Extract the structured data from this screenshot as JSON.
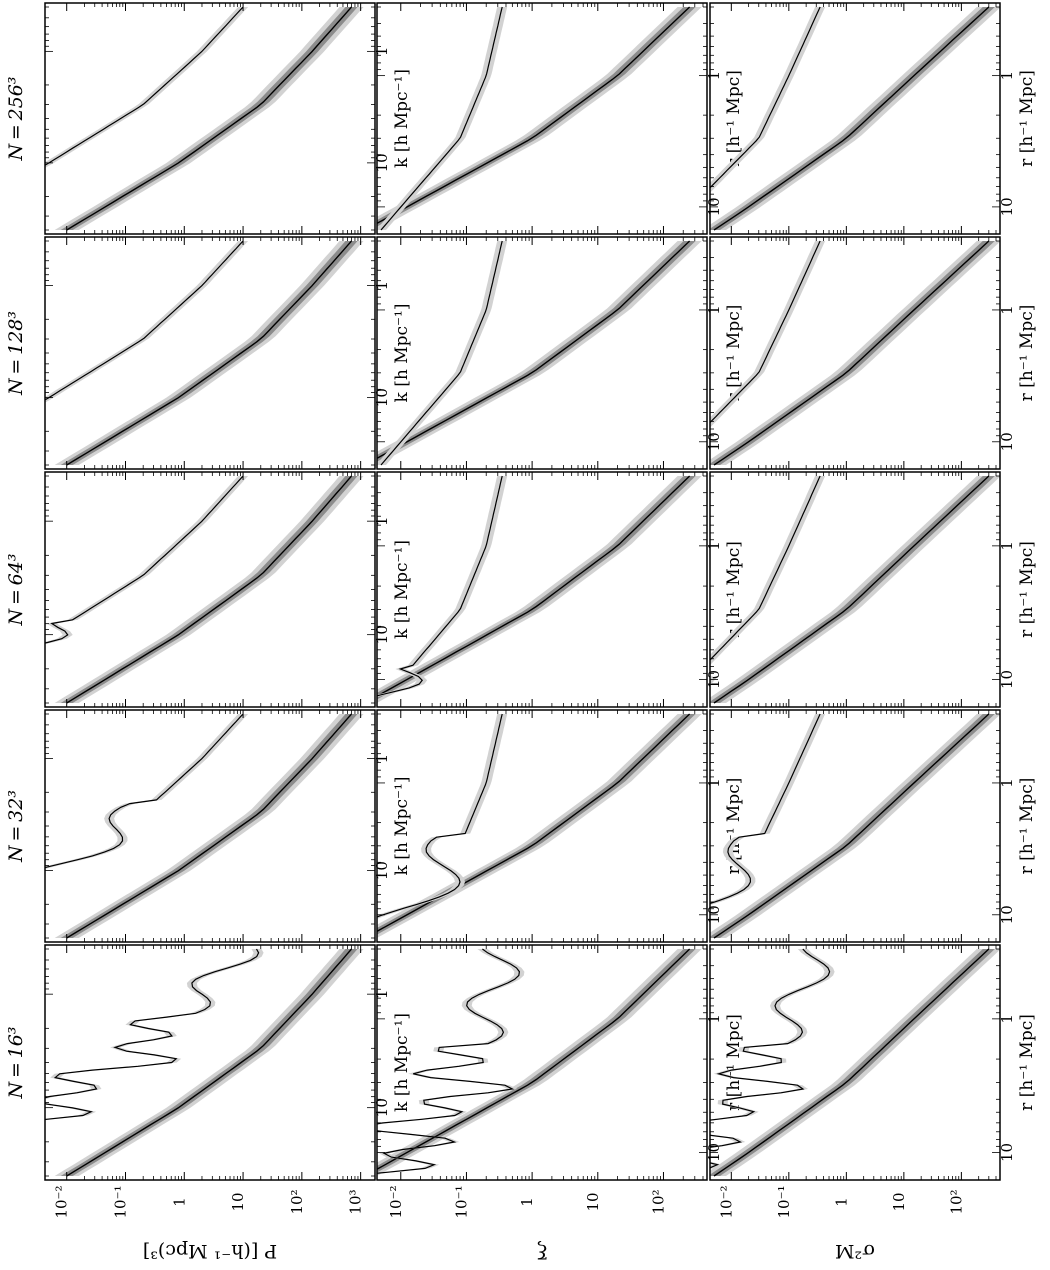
{
  "figure": {
    "columns": [
      {
        "label": "N = 16³",
        "lowres_style": "jagged16"
      },
      {
        "label": "N = 32³",
        "lowres_style": "jagged32"
      },
      {
        "label": "N = 64³",
        "lowres_style": "jagged64"
      },
      {
        "label": "N = 128³",
        "lowres_style": "smooth"
      },
      {
        "label": "N = 256³",
        "lowres_style": "smooth"
      }
    ],
    "rows": [
      {
        "quantity": "power-spectrum",
        "ylabel": "P  [(h⁻¹ Mpc)³]",
        "xlabel": "k  [h  Mpc⁻¹]",
        "xticks": [
          "1",
          "10"
        ],
        "yticks": [
          "10³",
          "10²",
          "10",
          "1",
          "10⁻¹",
          "10⁻²"
        ]
      },
      {
        "quantity": "correlation-function",
        "ylabel": "ξ",
        "xlabel": "r  [h⁻¹ Mpc]",
        "xticks": [
          "1",
          "10"
        ],
        "yticks": [
          "10²",
          "10",
          "1",
          "10⁻¹",
          "10⁻²"
        ]
      },
      {
        "quantity": "mass-variance",
        "ylabel": "σ²M",
        "xlabel": "r  [h⁻¹ Mpc]",
        "xticks": [
          "1",
          "10"
        ],
        "yticks": [
          "10²",
          "10",
          "1",
          "10⁻¹",
          "10⁻²"
        ]
      }
    ]
  },
  "chart_data": {
    "type": "line",
    "layout": "3x5 panel grid, figure rotated 90 degrees",
    "bands": {
      "inner": "#8c8c8c",
      "outer": "#d2d2d2"
    },
    "rows": [
      {
        "quantity": "power-spectrum",
        "xscale": "log",
        "yscale": "log",
        "xlim": [
          0.4,
          40
        ],
        "ylim": [
          0.005,
          1500
        ],
        "nonlinear_curve": {
          "x": [
            0.4,
            1,
            3,
            10,
            40
          ],
          "y": [
            700,
            150,
            20,
            0.8,
            0.01
          ]
        },
        "linear_curve": {
          "x": [
            0.4,
            1,
            3,
            10,
            40
          ],
          "y": [
            10,
            2,
            0.2,
            0.005,
            5e-05
          ]
        }
      },
      {
        "quantity": "correlation-function",
        "xscale": "log",
        "yscale": "log",
        "xlim": [
          0.3,
          15
        ],
        "ylim": [
          0.005,
          400
        ],
        "nonlinear_curve": {
          "x": [
            0.3,
            1,
            3,
            6
          ],
          "y": [
            250,
            20,
            1,
            0.08
          ]
        },
        "linear_curve": {
          "x": [
            0.3,
            1,
            3,
            15
          ],
          "y": [
            0.35,
            0.2,
            0.08,
            0.005
          ]
        }
      },
      {
        "quantity": "mass-variance",
        "xscale": "log",
        "yscale": "log",
        "xlim": [
          0.3,
          15
        ],
        "ylim": [
          0.005,
          400
        ],
        "nonlinear_curve": {
          "x": [
            0.3,
            1,
            3,
            10,
            15
          ],
          "y": [
            300,
            15,
            1,
            0.02,
            0.005
          ]
        },
        "linear_curve": {
          "x": [
            0.3,
            1,
            3,
            10
          ],
          "y": [
            0.35,
            0.1,
            0.03,
            0.002
          ]
        }
      }
    ]
  }
}
